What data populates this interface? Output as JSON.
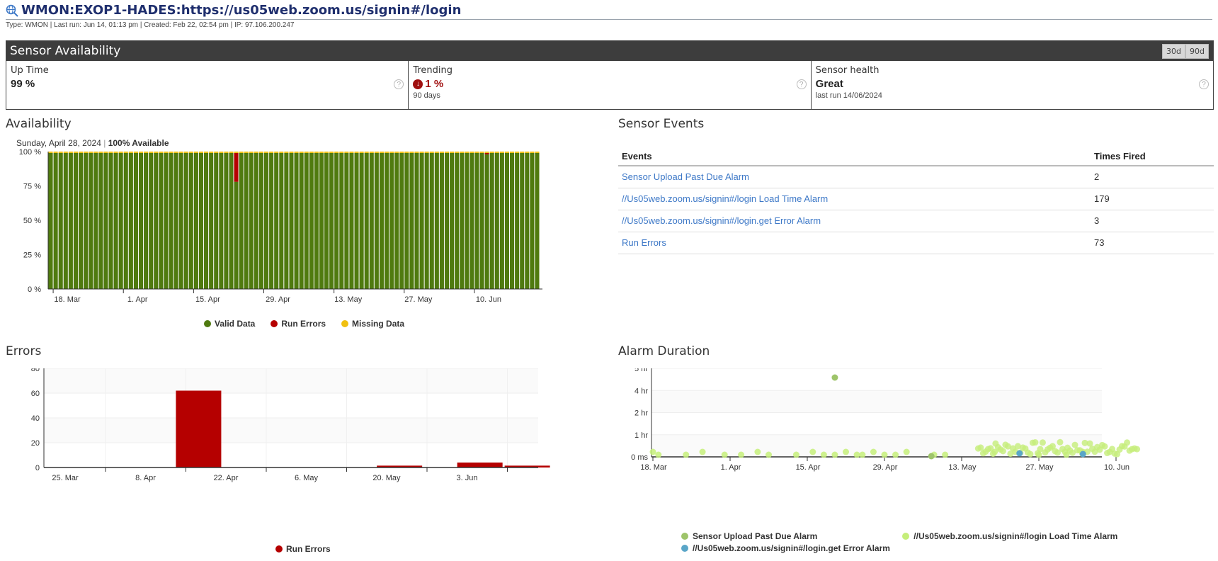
{
  "header": {
    "title": "WMON:EXOP1-HADES:https://us05web.zoom.us/signin#/login",
    "meta": "Type: WMON | Last run: Jun 14, 01:13 pm | Created: Feb 22, 02:54 pm | IP: 97.106.200.247"
  },
  "sensor_availability": {
    "title": "Sensor Availability",
    "ranges": [
      "30d",
      "90d"
    ],
    "uptime": {
      "label": "Up Time",
      "value": "99 %"
    },
    "trending": {
      "label": "Trending",
      "value": "1 %",
      "sub": "90 days"
    },
    "health": {
      "label": "Sensor health",
      "value": "Great",
      "sub": "last run 14/06/2024"
    },
    "help_glyph": "?"
  },
  "availability": {
    "title": "Availability",
    "tooltip_date": "Sunday, April 28, 2024",
    "tooltip_sep": "|",
    "tooltip_value": "100% Available"
  },
  "sensor_events": {
    "title": "Sensor Events",
    "columns": [
      "Events",
      "Times Fired"
    ],
    "rows": [
      {
        "event": "Sensor Upload Past Due Alarm",
        "fired": "2"
      },
      {
        "event": "//Us05web.zoom.us/signin#/login Load Time Alarm",
        "fired": "179"
      },
      {
        "event": "//Us05web.zoom.us/signin#/login.get Error Alarm",
        "fired": "3"
      },
      {
        "event": "Run Errors",
        "fired": "73"
      }
    ]
  },
  "errors": {
    "title": "Errors"
  },
  "alarm_duration": {
    "title": "Alarm Duration"
  },
  "colors": {
    "valid": "#4f7a0f",
    "run_errors": "#b50000",
    "missing": "#f0c010",
    "alarm1": "#9ec46a",
    "alarm2": "#c5ee7a",
    "alarm3": "#5aa6c8"
  },
  "chart_data": [
    {
      "type": "bar",
      "title": "Availability",
      "stacked": true,
      "x_ticks": [
        "18. Mar",
        "1. Apr",
        "15. Apr",
        "29. Apr",
        "13. May",
        "27. May",
        "10. Jun"
      ],
      "y_ticks": [
        "0 %",
        "25 %",
        "50 %",
        "75 %",
        "100 %"
      ],
      "ylim": [
        0,
        100
      ],
      "days": 98,
      "series": [
        {
          "name": "Valid Data",
          "color": "#4f7a0f",
          "values_note": "99% every day except one day at 77%"
        },
        {
          "name": "Run Errors",
          "color": "#b50000",
          "points": [
            {
              "day": 37,
              "value": 21
            },
            {
              "day": 87,
              "value": 1
            }
          ]
        },
        {
          "name": "Missing Data",
          "color": "#f0c010",
          "value": 1
        }
      ],
      "legend": [
        "Valid Data",
        "Run Errors",
        "Missing Data"
      ]
    },
    {
      "type": "bar",
      "title": "Errors",
      "x_ticks": [
        "25. Mar",
        "8. Apr",
        "22. Apr",
        "6. May",
        "20. May",
        "3. Jun"
      ],
      "y_ticks": [
        "0",
        "20",
        "40",
        "60",
        "80"
      ],
      "ylim": [
        0,
        80
      ],
      "series": [
        {
          "name": "Run Errors",
          "color": "#b50000",
          "bars": [
            {
              "week": "15. Apr",
              "value": 62
            },
            {
              "week": "20. May",
              "value": 1.5
            },
            {
              "week": "3. Jun",
              "value": 4
            },
            {
              "week": "10. Jun",
              "value": 1.5
            }
          ]
        }
      ],
      "legend": [
        "Run Errors"
      ]
    },
    {
      "type": "scatter",
      "title": "Alarm Duration",
      "x_ticks": [
        "18. Mar",
        "1. Apr",
        "15. Apr",
        "29. Apr",
        "13. May",
        "27. May",
        "10. Jun"
      ],
      "y_ticks": [
        "0 ms",
        "1 hr",
        "2 hr",
        "4 hr",
        "5 hr"
      ],
      "series": [
        {
          "name": "Sensor Upload Past Due Alarm",
          "color": "#9ec46a",
          "points": [
            {
              "x": "19. Apr",
              "y": "4.5 hr"
            },
            {
              "x": "9. May",
              "y": "0 ms"
            }
          ]
        },
        {
          "name": "//Us05web.zoom.us/signin#/login Load Time Alarm",
          "color": "#c5ee7a",
          "points_note": "many short alarms, mostly under 1 hr, dense after 13. May"
        },
        {
          "name": "//Us05web.zoom.us/signin#/login.get Error Alarm",
          "color": "#5aa6c8",
          "points": [
            {
              "x": "22. May",
              "y": "0 ms"
            },
            {
              "x": "3. Jun",
              "y": "0 ms"
            }
          ]
        }
      ],
      "legend": [
        "Sensor Upload Past Due Alarm",
        "//Us05web.zoom.us/signin#/login Load Time Alarm",
        "//Us05web.zoom.us/signin#/login.get Error Alarm"
      ]
    }
  ]
}
